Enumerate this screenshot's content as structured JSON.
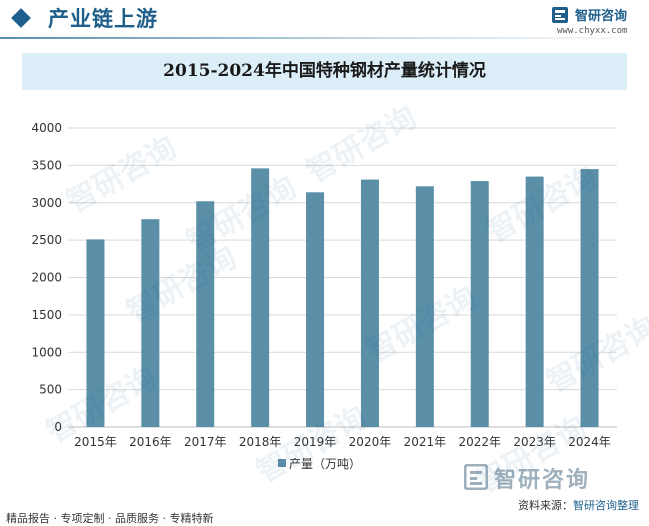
{
  "header": {
    "title": "产业链上游",
    "brand_name": "智研咨询",
    "brand_url": "www.chyxx.com",
    "accent_color": "#1f5f8b"
  },
  "watermark_text": "智研咨询",
  "chart_data": {
    "type": "bar",
    "title": "2015-2024年中国特种钢材产量统计情况",
    "categories": [
      "2015年",
      "2016年",
      "2017年",
      "2018年",
      "2019年",
      "2020年",
      "2021年",
      "2022年",
      "2023年",
      "2024年"
    ],
    "series": [
      {
        "name": "产量（万吨）",
        "values": [
          2510,
          2780,
          3020,
          3460,
          3140,
          3310,
          3220,
          3290,
          3350,
          3450
        ],
        "color": "#5b8fa8"
      }
    ],
    "ylim": [
      0,
      4000
    ],
    "yticks": [
      "0",
      "500",
      "1000",
      "1500",
      "2000",
      "2500",
      "3000",
      "3500",
      "4000"
    ],
    "grid": true,
    "legend_position": "bottom"
  },
  "footer": {
    "left_text": "精品报告 · 专项定制 · 品质服务 · 专精特新",
    "source_label": "资料来源：",
    "source_value": "智研咨询整理",
    "big_brand": "智研咨询"
  }
}
